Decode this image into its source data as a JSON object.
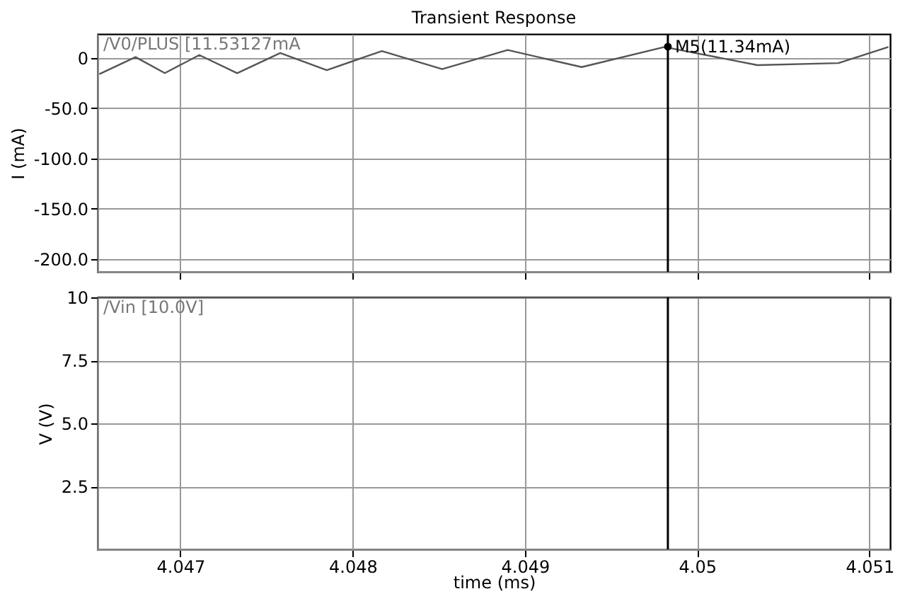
{
  "chart_data": [
    {
      "type": "line",
      "title": "Transient Response",
      "ylabel": "I (mA)",
      "series": [
        {
          "name": "/V0/PLUS  [11.53127mA",
          "color": "#555555",
          "x": [
            4.04653,
            4.04674,
            4.04691,
            4.04711,
            4.04733,
            4.04758,
            4.04785,
            4.04817,
            4.04852,
            4.0489,
            4.04933,
            4.04981,
            4.05035,
            4.05082,
            4.05111
          ],
          "values": [
            -16,
            1,
            -15,
            3,
            -15,
            5,
            -12,
            7,
            -11,
            8,
            -9,
            11,
            -7,
            -5,
            11
          ]
        }
      ],
      "xlim": [
        4.04652,
        4.05112
      ],
      "xticks": [
        4.047,
        4.048,
        4.049,
        4.05,
        4.051
      ],
      "ylim": [
        -213,
        24
      ],
      "yticks": [
        0,
        {
          "value": -50,
          "label": "-50.0"
        },
        {
          "value": -100,
          "label": "-100.0"
        },
        {
          "value": -150,
          "label": "-150.0"
        },
        {
          "value": -200,
          "label": "-200.0"
        }
      ],
      "ref_lines": [
        {
          "axis": "x",
          "value": 4.04983,
          "color": "#000000"
        }
      ],
      "annotations": [
        {
          "text": "M5(11.34mA)",
          "x": 4.04983,
          "y": 11.34
        }
      ],
      "grid": true,
      "tick_labels": "y",
      "line_style": "solid"
    },
    {
      "type": "line",
      "xlabel": "time (ms)",
      "ylabel": "V (V)",
      "series": [
        {
          "name": "/Vin  [10.0V]",
          "color": "#555555",
          "x": [
            4.04652,
            4.05112
          ],
          "values": [
            10,
            10
          ]
        }
      ],
      "xlim": [
        4.04652,
        4.05112
      ],
      "xticks": [
        4.047,
        4.048,
        4.049,
        4.05,
        4.051
      ],
      "ylim": [
        0,
        10
      ],
      "yticks": [
        {
          "value": 2.5,
          "label": "2.5"
        },
        {
          "value": 5,
          "label": "5.0"
        },
        {
          "value": 7.5,
          "label": "7.5"
        },
        10
      ],
      "ref_lines": [
        {
          "axis": "x",
          "value": 4.04983,
          "color": "#000000"
        }
      ],
      "grid": true,
      "line_style": "solid"
    }
  ]
}
